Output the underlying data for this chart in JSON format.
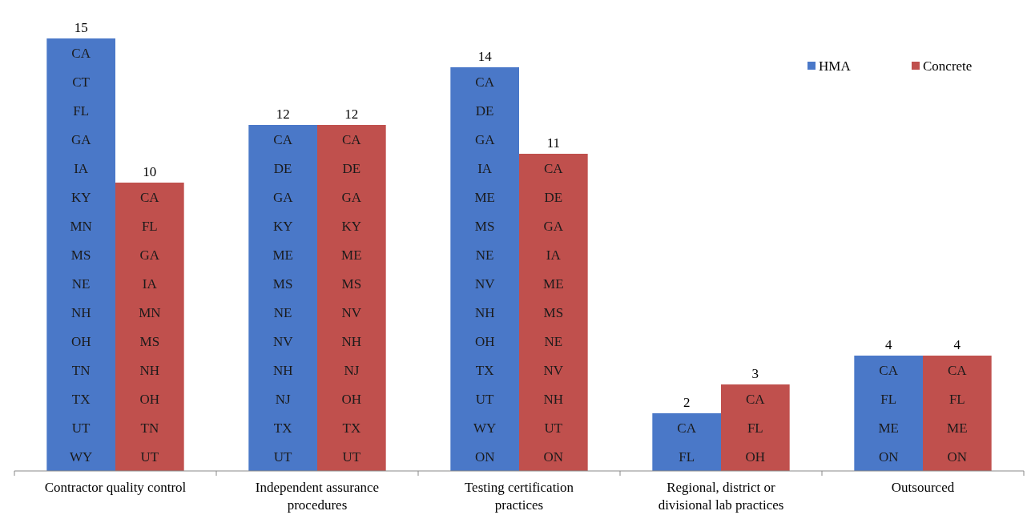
{
  "chart_data": {
    "type": "bar",
    "categories": [
      "Contractor quality control",
      "Independent assurance procedures",
      "Testing certification practices",
      "Regional, district or divisional lab practices",
      "Outsourced"
    ],
    "series": [
      {
        "name": "HMA",
        "color": "#4a78c8",
        "values": [
          15,
          12,
          14,
          2,
          4
        ]
      },
      {
        "name": "Concrete",
        "color": "#c0504d",
        "values": [
          10,
          12,
          11,
          3,
          4
        ]
      }
    ],
    "data_labels": true,
    "legend": "top right",
    "grid": false,
    "annotations": [
      "CA\nCT\nFL\nGA\nIA\nKY\nMN\nMS\nNE\nNH\nOH\nTN\nTX\nUT\nWY",
      "CA\nFL\nGA\nIA\nMN\nMS\nNH\nOH\nTN\nUT",
      "CA\nDE\nGA\nKY\nME\nMS\nNE\nNV\nNH\nNJ\nTX\nUT",
      "CA\nDE\nGA\nKY\nME\nMS\nNV\nNH\nNJ\nOH\nTX\nUT",
      "CA\nDE\nGA\nIA\nME\nMS\nNE\nNV\nNH\nOH\nTX\nUT\nWY\nON",
      "CA\nDE\nGA\nIA\nME\nMS\nNE\nNV\nNH\nUT\nON",
      "CA\nFL",
      "CA\nFL\nOH",
      "CA\nFL\nME\nON",
      "CA\nFL\nME\nON"
    ]
  }
}
